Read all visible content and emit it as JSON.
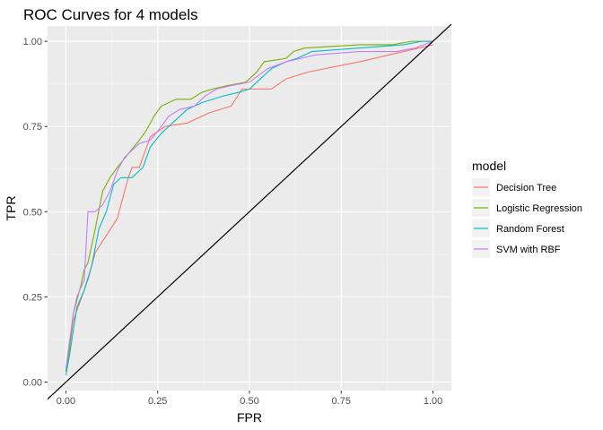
{
  "chart_data": {
    "type": "line",
    "title": "ROC Curves for 4 models",
    "xlabel": "FPR",
    "ylabel": "TPR",
    "xlim": [
      -0.05,
      1.05
    ],
    "ylim": [
      -0.025,
      1.045
    ],
    "x_ticks": [
      0.0,
      0.25,
      0.5,
      0.75,
      1.0
    ],
    "x_tick_labels": [
      "0.00",
      "0.25",
      "0.50",
      "0.75",
      "1.00"
    ],
    "y_ticks": [
      0.0,
      0.25,
      0.5,
      0.75,
      1.0
    ],
    "y_tick_labels": [
      "0.00",
      "0.25",
      "0.50",
      "0.75",
      "1.00"
    ],
    "grid": true,
    "legend": {
      "title": "model",
      "placement": "right"
    },
    "reference_line": {
      "from": [
        0,
        0
      ],
      "to": [
        1,
        1
      ],
      "color": "#000000"
    },
    "series": [
      {
        "name": "Decision Tree",
        "color": "#F8766D",
        "points": [
          [
            0,
            0.03
          ],
          [
            0.01,
            0.1
          ],
          [
            0.02,
            0.18
          ],
          [
            0.04,
            0.24
          ],
          [
            0.06,
            0.3
          ],
          [
            0.08,
            0.38
          ],
          [
            0.11,
            0.43
          ],
          [
            0.14,
            0.48
          ],
          [
            0.17,
            0.6
          ],
          [
            0.18,
            0.63
          ],
          [
            0.2,
            0.63
          ],
          [
            0.23,
            0.72
          ],
          [
            0.27,
            0.75
          ],
          [
            0.33,
            0.76
          ],
          [
            0.39,
            0.79
          ],
          [
            0.45,
            0.81
          ],
          [
            0.48,
            0.86
          ],
          [
            0.56,
            0.86
          ],
          [
            0.6,
            0.89
          ],
          [
            0.66,
            0.91
          ],
          [
            0.8,
            0.94
          ],
          [
            1,
            0.99
          ]
        ]
      },
      {
        "name": "Logistic Regression",
        "color": "#7CAE00",
        "points": [
          [
            0,
            0.03
          ],
          [
            0.01,
            0.1
          ],
          [
            0.02,
            0.2
          ],
          [
            0.04,
            0.28
          ],
          [
            0.05,
            0.33
          ],
          [
            0.06,
            0.35
          ],
          [
            0.08,
            0.45
          ],
          [
            0.1,
            0.56
          ],
          [
            0.12,
            0.6
          ],
          [
            0.14,
            0.63
          ],
          [
            0.17,
            0.67
          ],
          [
            0.2,
            0.71
          ],
          [
            0.22,
            0.74
          ],
          [
            0.24,
            0.78
          ],
          [
            0.26,
            0.81
          ],
          [
            0.3,
            0.83
          ],
          [
            0.34,
            0.83
          ],
          [
            0.37,
            0.85
          ],
          [
            0.4,
            0.86
          ],
          [
            0.44,
            0.87
          ],
          [
            0.49,
            0.88
          ],
          [
            0.52,
            0.91
          ],
          [
            0.54,
            0.94
          ],
          [
            0.6,
            0.95
          ],
          [
            0.62,
            0.97
          ],
          [
            0.65,
            0.98
          ],
          [
            0.8,
            0.99
          ],
          [
            0.89,
            0.99
          ],
          [
            0.94,
            1.0
          ],
          [
            1,
            1.0
          ]
        ]
      },
      {
        "name": "Random Forest",
        "color": "#00BFC4",
        "points": [
          [
            0,
            0.02
          ],
          [
            0.01,
            0.08
          ],
          [
            0.02,
            0.15
          ],
          [
            0.03,
            0.22
          ],
          [
            0.05,
            0.27
          ],
          [
            0.07,
            0.34
          ],
          [
            0.09,
            0.45
          ],
          [
            0.11,
            0.5
          ],
          [
            0.13,
            0.58
          ],
          [
            0.15,
            0.6
          ],
          [
            0.18,
            0.6
          ],
          [
            0.21,
            0.63
          ],
          [
            0.23,
            0.69
          ],
          [
            0.26,
            0.73
          ],
          [
            0.29,
            0.76
          ],
          [
            0.33,
            0.8
          ],
          [
            0.37,
            0.82
          ],
          [
            0.4,
            0.83
          ],
          [
            0.43,
            0.84
          ],
          [
            0.47,
            0.85
          ],
          [
            0.5,
            0.86
          ],
          [
            0.53,
            0.89
          ],
          [
            0.56,
            0.92
          ],
          [
            0.6,
            0.94
          ],
          [
            0.63,
            0.95
          ],
          [
            0.67,
            0.97
          ],
          [
            0.92,
            0.99
          ],
          [
            0.97,
            1.0
          ],
          [
            1,
            1.0
          ]
        ]
      },
      {
        "name": "SVM with RBF",
        "color": "#C77CFF",
        "points": [
          [
            0,
            0.04
          ],
          [
            0.01,
            0.12
          ],
          [
            0.02,
            0.2
          ],
          [
            0.03,
            0.25
          ],
          [
            0.05,
            0.3
          ],
          [
            0.06,
            0.5
          ],
          [
            0.08,
            0.5
          ],
          [
            0.1,
            0.52
          ],
          [
            0.12,
            0.56
          ],
          [
            0.14,
            0.62
          ],
          [
            0.16,
            0.66
          ],
          [
            0.18,
            0.68
          ],
          [
            0.2,
            0.7
          ],
          [
            0.23,
            0.71
          ],
          [
            0.26,
            0.75
          ],
          [
            0.28,
            0.78
          ],
          [
            0.31,
            0.8
          ],
          [
            0.35,
            0.81
          ],
          [
            0.38,
            0.84
          ],
          [
            0.41,
            0.86
          ],
          [
            0.45,
            0.87
          ],
          [
            0.5,
            0.88
          ],
          [
            0.55,
            0.92
          ],
          [
            0.6,
            0.94
          ],
          [
            0.64,
            0.95
          ],
          [
            0.68,
            0.96
          ],
          [
            0.8,
            0.97
          ],
          [
            0.9,
            0.97
          ],
          [
            0.95,
            0.98
          ],
          [
            1,
            1.0
          ]
        ]
      }
    ]
  }
}
